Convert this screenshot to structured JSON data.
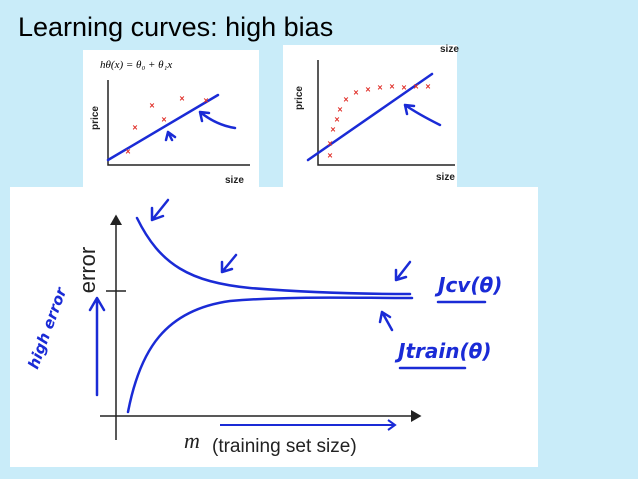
{
  "header": {
    "title": "Learning curves: high bias"
  },
  "plots": [
    {
      "formula": "hθ(x) = θ₀ + θ₁x",
      "y_label": "price",
      "x_label": "size"
    },
    {
      "top_label": "size",
      "y_label": "price",
      "x_label": "size"
    }
  ],
  "main_plot": {
    "y_label": "error",
    "x_symbol": "m",
    "x_label": "(training set size)",
    "annotations": {
      "left": "high error",
      "cv": "Jcv(θ)",
      "train": "Jtrain(θ)"
    }
  }
}
